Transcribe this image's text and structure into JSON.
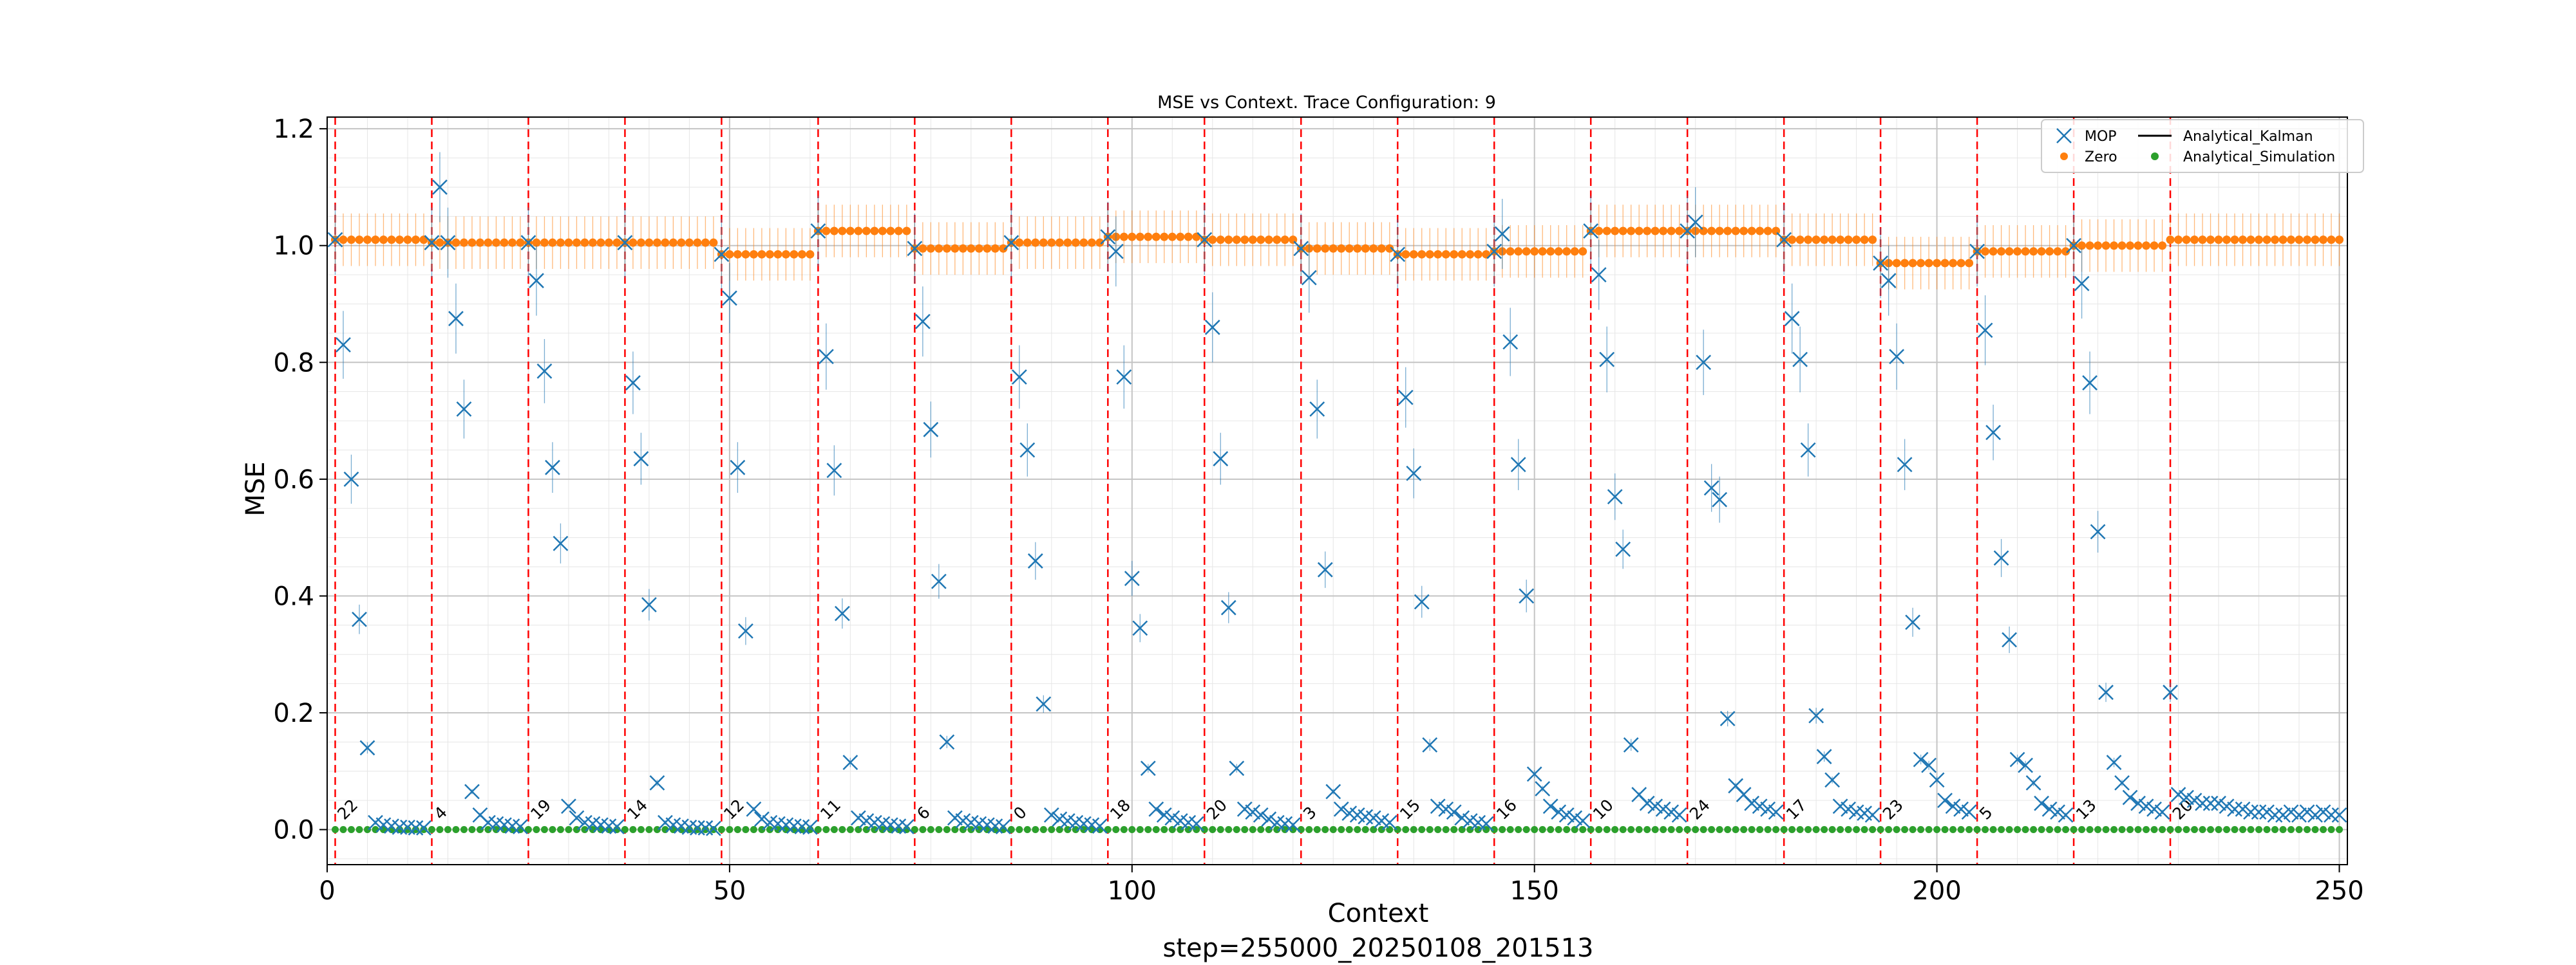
{
  "chart_data": {
    "type": "scatter",
    "title": "MSE vs Context. Trace Configuration: 9",
    "xlabel": "Context",
    "ylabel": "MSE",
    "footer": "step=255000_20250108_201513",
    "xlim": [
      0,
      251
    ],
    "ylim": [
      -0.06,
      1.22
    ],
    "xticks": [
      0,
      50,
      100,
      150,
      200,
      250
    ],
    "yticks": [
      0.0,
      0.2,
      0.4,
      0.6,
      0.8,
      1.0,
      1.2
    ],
    "ytick_labels": [
      "0.0",
      "0.2",
      "0.4",
      "0.6",
      "0.8",
      "1.0",
      "1.2"
    ],
    "grid": true,
    "legend": {
      "position": "top-right",
      "entries": [
        "MOP",
        "Zero",
        "Analytical_Kalman",
        "Analytical_Simulation"
      ]
    },
    "colors": {
      "MOP": "#1f77b4",
      "Zero": "#ff7f0e",
      "Analytical_Kalman": "#000000",
      "Analytical_Simulation": "#2ca02c",
      "boundary": "#ff0000"
    },
    "segments": [
      {
        "label": "22",
        "start": 1,
        "mop": [
          1.01,
          0.83,
          0.6,
          0.36,
          0.14,
          0.012,
          0.008,
          0.006,
          0.004,
          0.004,
          0.003,
          0.003
        ],
        "zero": 1.01
      },
      {
        "label": "4",
        "start": 13,
        "mop": [
          1.005,
          1.1,
          1.005,
          0.875,
          0.72,
          0.065,
          0.025,
          0.012,
          0.01,
          0.008,
          0.006,
          0.005
        ],
        "zero": 1.005
      },
      {
        "label": "19",
        "start": 25,
        "mop": [
          1.005,
          0.94,
          0.785,
          0.62,
          0.49,
          0.04,
          0.02,
          0.012,
          0.01,
          0.008,
          0.006,
          0.005
        ],
        "zero": 1.005
      },
      {
        "label": "14",
        "start": 37,
        "mop": [
          1.005,
          0.765,
          0.635,
          0.385,
          0.08,
          0.012,
          0.008,
          0.006,
          0.004,
          0.003,
          0.003,
          0.002
        ],
        "zero": 1.005
      },
      {
        "label": "12",
        "start": 49,
        "mop": [
          0.985,
          0.91,
          0.62,
          0.34,
          0.035,
          0.018,
          0.012,
          0.01,
          0.008,
          0.006,
          0.005,
          0.004
        ],
        "zero": 0.985
      },
      {
        "label": "11",
        "start": 61,
        "mop": [
          1.025,
          0.81,
          0.615,
          0.37,
          0.115,
          0.02,
          0.015,
          0.012,
          0.01,
          0.008,
          0.006,
          0.005
        ],
        "zero": 1.025
      },
      {
        "label": "6",
        "start": 73,
        "mop": [
          0.995,
          0.87,
          0.685,
          0.425,
          0.15,
          0.02,
          0.015,
          0.012,
          0.01,
          0.008,
          0.006,
          0.005
        ],
        "zero": 0.995
      },
      {
        "label": "0",
        "start": 85,
        "mop": [
          1.005,
          0.775,
          0.65,
          0.46,
          0.215,
          0.025,
          0.018,
          0.015,
          0.012,
          0.01,
          0.008,
          0.006
        ],
        "zero": 1.005
      },
      {
        "label": "18",
        "start": 97,
        "mop": [
          1.015,
          0.99,
          0.775,
          0.43,
          0.345,
          0.105,
          0.035,
          0.025,
          0.02,
          0.015,
          0.012,
          0.01
        ],
        "zero": 1.015
      },
      {
        "label": "20",
        "start": 109,
        "mop": [
          1.01,
          0.86,
          0.635,
          0.38,
          0.105,
          0.035,
          0.03,
          0.025,
          0.018,
          0.012,
          0.01,
          0.008
        ],
        "zero": 1.01
      },
      {
        "label": "3",
        "start": 121,
        "mop": [
          0.995,
          0.945,
          0.72,
          0.445,
          0.065,
          0.035,
          0.028,
          0.025,
          0.022,
          0.02,
          0.015,
          0.012
        ],
        "zero": 0.995
      },
      {
        "label": "15",
        "start": 133,
        "mop": [
          0.985,
          0.74,
          0.61,
          0.39,
          0.145,
          0.04,
          0.035,
          0.03,
          0.02,
          0.015,
          0.012,
          0.01
        ],
        "zero": 0.985
      },
      {
        "label": "16",
        "start": 145,
        "mop": [
          0.99,
          1.02,
          0.835,
          0.625,
          0.4,
          0.095,
          0.07,
          0.04,
          0.03,
          0.025,
          0.02,
          0.015
        ],
        "zero": 0.99
      },
      {
        "label": "10",
        "start": 157,
        "mop": [
          1.025,
          0.95,
          0.805,
          0.57,
          0.48,
          0.145,
          0.06,
          0.045,
          0.04,
          0.035,
          0.03,
          0.025
        ],
        "zero": 1.025
      },
      {
        "label": "24",
        "start": 169,
        "mop": [
          1.025,
          1.04,
          0.8,
          0.585,
          0.565,
          0.19,
          0.075,
          0.06,
          0.045,
          0.04,
          0.035,
          0.03
        ],
        "zero": 1.025
      },
      {
        "label": "17",
        "start": 181,
        "mop": [
          1.01,
          0.875,
          0.805,
          0.65,
          0.195,
          0.125,
          0.085,
          0.04,
          0.035,
          0.03,
          0.028,
          0.025
        ],
        "zero": 1.01
      },
      {
        "label": "23",
        "start": 193,
        "mop": [
          0.97,
          0.94,
          0.81,
          0.625,
          0.355,
          0.12,
          0.11,
          0.085,
          0.05,
          0.04,
          0.035,
          0.03
        ],
        "zero": 0.97
      },
      {
        "label": "5",
        "start": 205,
        "mop": [
          0.99,
          0.855,
          0.68,
          0.465,
          0.325,
          0.12,
          0.11,
          0.08,
          0.045,
          0.035,
          0.03,
          0.025
        ],
        "zero": 0.99
      },
      {
        "label": "13",
        "start": 217,
        "mop": [
          1.0,
          0.935,
          0.765,
          0.51,
          0.235,
          0.115,
          0.08,
          0.055,
          0.045,
          0.04,
          0.035,
          0.03
        ],
        "zero": 1.0
      },
      {
        "label": "20",
        "start": 229,
        "mop": [
          0.235,
          0.06,
          0.055,
          0.05,
          0.045,
          0.045,
          0.045,
          0.04,
          0.035,
          0.035,
          0.03,
          0.03,
          0.03,
          0.025,
          0.025,
          0.03,
          0.025,
          0.03,
          0.025,
          0.03,
          0.025,
          0.025
        ],
        "zero": 1.01
      }
    ],
    "zero_error": 0.045,
    "mop_error_scale": 0.06
  }
}
